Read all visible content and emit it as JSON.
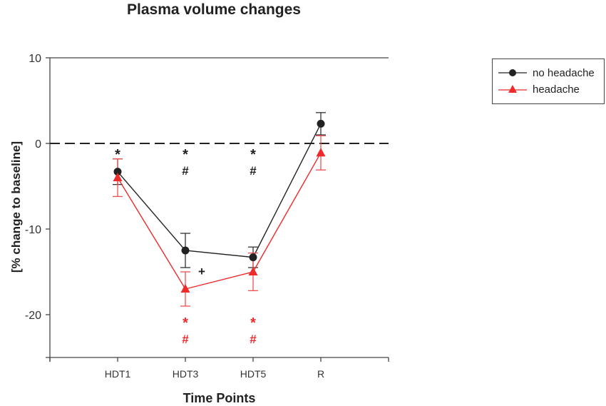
{
  "chart_data": {
    "type": "line",
    "title": "Plasma volume changes",
    "xlabel": "Time Points",
    "ylabel": "[% change to baseline]",
    "categories": [
      "HDT1",
      "HDT3",
      "HDT5",
      "R"
    ],
    "ylim": [
      -25,
      10
    ],
    "yticks": [
      10,
      0,
      -10,
      -20
    ],
    "reference_line": {
      "y": 0,
      "style": "dashed"
    },
    "grid": false,
    "legend_position": "right-top",
    "series": [
      {
        "name": "no headache",
        "color": "#222222",
        "marker": "circle",
        "values": [
          -3.3,
          -12.5,
          -13.3,
          2.3
        ],
        "errors": [
          1.5,
          2.0,
          1.2,
          1.3
        ]
      },
      {
        "name": "headache",
        "color": "#ee2a2a",
        "marker": "triangle",
        "values": [
          -4.0,
          -17.0,
          -15.0,
          -1.1
        ],
        "errors": [
          2.2,
          2.0,
          2.2,
          2.0
        ]
      }
    ],
    "annotations": [
      {
        "category": "HDT1",
        "text": "*",
        "color": "#222222",
        "position": "above"
      },
      {
        "category": "HDT3",
        "text": "*",
        "color": "#222222",
        "position": "above"
      },
      {
        "category": "HDT3",
        "text": "#",
        "color": "#222222",
        "position": "above"
      },
      {
        "category": "HDT5",
        "text": "*",
        "color": "#222222",
        "position": "above"
      },
      {
        "category": "HDT5",
        "text": "#",
        "color": "#222222",
        "position": "above"
      },
      {
        "category": "HDT3",
        "text": "+",
        "color": "#222222",
        "position": "right"
      },
      {
        "category": "HDT3",
        "text": "*",
        "color": "#ee2a2a",
        "position": "below"
      },
      {
        "category": "HDT3",
        "text": "#",
        "color": "#ee2a2a",
        "position": "below"
      },
      {
        "category": "HDT5",
        "text": "*",
        "color": "#ee2a2a",
        "position": "below"
      },
      {
        "category": "HDT5",
        "text": "#",
        "color": "#ee2a2a",
        "position": "below"
      }
    ]
  },
  "legend": {
    "items": [
      {
        "label": "no headache",
        "color": "#222222"
      },
      {
        "label": "headache",
        "color": "#ee2a2a"
      }
    ]
  }
}
